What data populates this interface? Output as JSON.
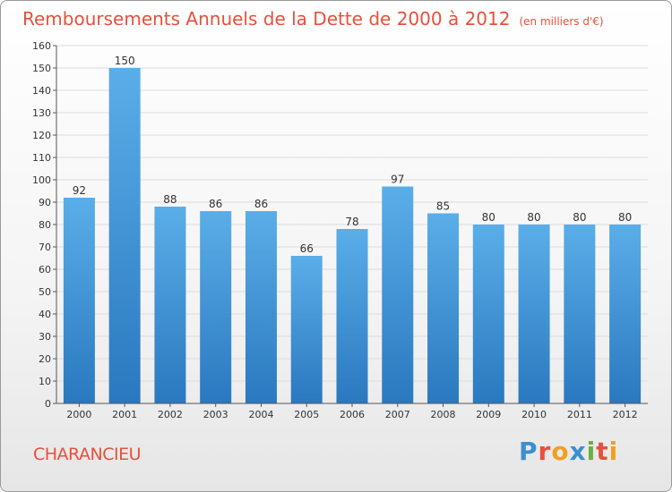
{
  "chart_data": {
    "type": "bar",
    "title": "Remboursements Annuels de la Dette de 2000 à 2012",
    "unit_label": "(en milliers d'€)",
    "categories": [
      "2000",
      "2001",
      "2002",
      "2003",
      "2004",
      "2005",
      "2006",
      "2007",
      "2008",
      "2009",
      "2010",
      "2011",
      "2012"
    ],
    "values": [
      92,
      150,
      88,
      86,
      86,
      66,
      78,
      97,
      85,
      80,
      80,
      80,
      80
    ],
    "ylim": [
      0,
      160
    ],
    "yticks": [
      0,
      10,
      20,
      30,
      40,
      50,
      60,
      70,
      80,
      90,
      100,
      110,
      120,
      130,
      140,
      150,
      160
    ],
    "xlabel": "",
    "ylabel": "",
    "grid": true,
    "colors": {
      "bar_top": "#5aaee8",
      "bar_bottom": "#2a78bf",
      "title": "#e8503c",
      "grid": "#dcdcdc"
    }
  },
  "commune_name": "CHARANCIEU",
  "logo": {
    "text": "Proxiti",
    "letters": [
      {
        "ch": "P",
        "color": "#3a8fd0"
      },
      {
        "ch": "r",
        "color": "#e8503c"
      },
      {
        "ch": "o",
        "color": "#f0a020"
      },
      {
        "ch": "x",
        "color": "#3a8fd0"
      },
      {
        "ch": "i",
        "color": "#6ab040"
      },
      {
        "ch": "t",
        "color": "#e8503c"
      },
      {
        "ch": "i",
        "color": "#f0a020"
      }
    ]
  }
}
